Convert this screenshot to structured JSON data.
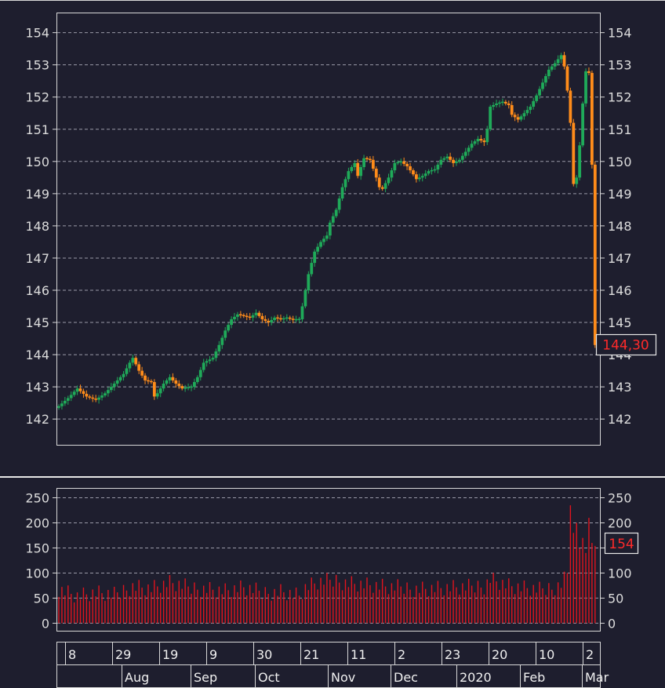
{
  "colors": {
    "background": "#1e1e2e",
    "up": "#1faa59",
    "down": "#ff8c1a",
    "volume": "#e0141e",
    "grid": "#9a9aa8",
    "frame": "#d8d8d8",
    "last_label": "#ff2a2a"
  },
  "chart_data": [
    {
      "type": "candlestick",
      "ylim": [
        141.2,
        154.6
      ],
      "yticks": [
        "154",
        "153",
        "152",
        "151",
        "150",
        "149",
        "148",
        "147",
        "146",
        "145",
        "144",
        "143",
        "142"
      ],
      "grid": true,
      "last_value_label": "144,30",
      "anchors": [
        [
          0,
          142.4
        ],
        [
          3,
          142.65
        ],
        [
          6,
          142.95
        ],
        [
          9,
          142.7
        ],
        [
          12,
          142.6
        ],
        [
          15,
          142.8
        ],
        [
          18,
          143.1
        ],
        [
          21,
          143.4
        ],
        [
          23,
          143.75
        ],
        [
          24,
          143.9
        ],
        [
          26,
          143.5
        ],
        [
          28,
          143.2
        ],
        [
          30,
          143.15
        ],
        [
          31,
          142.7
        ],
        [
          32,
          142.8
        ],
        [
          34,
          143.1
        ],
        [
          36,
          143.3
        ],
        [
          38,
          143.1
        ],
        [
          40,
          142.95
        ],
        [
          43,
          143.0
        ],
        [
          45,
          143.3
        ],
        [
          47,
          143.75
        ],
        [
          50,
          143.9
        ],
        [
          52,
          144.3
        ],
        [
          54,
          144.75
        ],
        [
          56,
          145.1
        ],
        [
          58,
          145.25
        ],
        [
          60,
          145.2
        ],
        [
          62,
          145.15
        ],
        [
          64,
          145.3
        ],
        [
          66,
          145.1
        ],
        [
          68,
          145.0
        ],
        [
          70,
          145.15
        ],
        [
          72,
          145.1
        ],
        [
          74,
          145.15
        ],
        [
          76,
          145.08
        ],
        [
          78,
          145.1
        ],
        [
          79,
          145.5
        ],
        [
          80,
          146.0
        ],
        [
          81,
          146.5
        ],
        [
          83,
          147.2
        ],
        [
          85,
          147.5
        ],
        [
          87,
          147.7
        ],
        [
          88,
          148.1
        ],
        [
          90,
          148.5
        ],
        [
          92,
          149.2
        ],
        [
          94,
          149.7
        ],
        [
          96,
          149.95
        ],
        [
          97,
          149.55
        ],
        [
          99,
          150.1
        ],
        [
          101,
          150.05
        ],
        [
          103,
          149.5
        ],
        [
          104,
          149.2
        ],
        [
          105,
          149.15
        ],
        [
          107,
          149.5
        ],
        [
          109,
          149.95
        ],
        [
          111,
          150.0
        ],
        [
          113,
          149.85
        ],
        [
          115,
          149.6
        ],
        [
          116,
          149.45
        ],
        [
          118,
          149.55
        ],
        [
          120,
          149.7
        ],
        [
          122,
          149.75
        ],
        [
          124,
          150.05
        ],
        [
          126,
          150.15
        ],
        [
          128,
          149.95
        ],
        [
          130,
          150.05
        ],
        [
          132,
          150.3
        ],
        [
          134,
          150.55
        ],
        [
          136,
          150.7
        ],
        [
          138,
          150.6
        ],
        [
          139,
          151.0
        ],
        [
          140,
          151.7
        ],
        [
          142,
          151.8
        ],
        [
          144,
          151.85
        ],
        [
          146,
          151.75
        ],
        [
          147,
          151.45
        ],
        [
          149,
          151.3
        ],
        [
          151,
          151.5
        ],
        [
          153,
          151.7
        ],
        [
          155,
          152.05
        ],
        [
          157,
          152.45
        ],
        [
          159,
          152.85
        ],
        [
          161,
          153.05
        ],
        [
          163,
          153.3
        ],
        [
          164,
          152.95
        ],
        [
          165,
          152.2
        ],
        [
          166,
          151.2
        ],
        [
          167,
          149.3
        ],
        [
          168,
          149.5
        ],
        [
          169,
          150.5
        ],
        [
          170,
          151.8
        ],
        [
          171,
          152.8
        ],
        [
          172,
          152.75
        ],
        [
          173,
          149.9
        ],
        [
          174,
          144.3
        ]
      ],
      "x_date_labels": [
        "8",
        "29",
        "19",
        "9",
        "30",
        "21",
        "11",
        "2",
        "23",
        "20",
        "10",
        "2"
      ],
      "x_month_labels": [
        "Aug",
        "Sep",
        "Oct",
        "Nov",
        "Dec",
        "2020",
        "Feb",
        "Mar"
      ]
    },
    {
      "type": "bar",
      "name": "volume",
      "ylim": [
        -15,
        268
      ],
      "yticks": [
        "250",
        "200",
        "150",
        "100",
        "50",
        "0"
      ],
      "grid": true,
      "last_value_label": "154",
      "anchors": [
        [
          0,
          70
        ],
        [
          6,
          55
        ],
        [
          12,
          60
        ],
        [
          18,
          55
        ],
        [
          24,
          75
        ],
        [
          30,
          70
        ],
        [
          36,
          80
        ],
        [
          42,
          70
        ],
        [
          48,
          70
        ],
        [
          54,
          65
        ],
        [
          60,
          70
        ],
        [
          66,
          60
        ],
        [
          72,
          65
        ],
        [
          78,
          55
        ],
        [
          80,
          70
        ],
        [
          84,
          80
        ],
        [
          90,
          85
        ],
        [
          96,
          80
        ],
        [
          102,
          75
        ],
        [
          108,
          70
        ],
        [
          114,
          70
        ],
        [
          120,
          70
        ],
        [
          126,
          70
        ],
        [
          132,
          70
        ],
        [
          138,
          75
        ],
        [
          140,
          90
        ],
        [
          146,
          75
        ],
        [
          150,
          70
        ],
        [
          156,
          65
        ],
        [
          160,
          70
        ],
        [
          163,
          80
        ],
        [
          165,
          100
        ],
        [
          166,
          235
        ],
        [
          167,
          180
        ],
        [
          168,
          200
        ],
        [
          169,
          150
        ],
        [
          170,
          170
        ],
        [
          171,
          140
        ],
        [
          172,
          210
        ],
        [
          173,
          160
        ],
        [
          174,
          154
        ]
      ]
    }
  ]
}
